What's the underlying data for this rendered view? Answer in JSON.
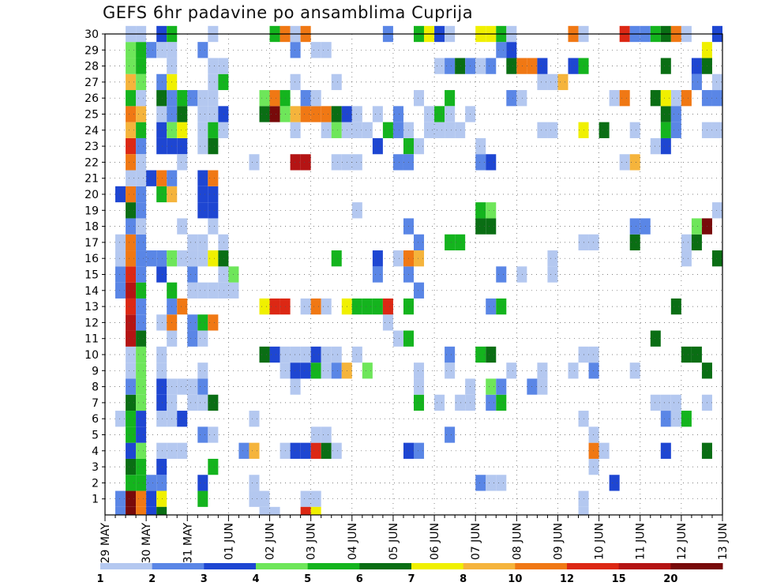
{
  "chart_data": {
    "type": "heatmap",
    "title": "GEFS 6hr padavine po ansamblima Cuprija",
    "xlabel": "",
    "ylabel": "",
    "x_tick_labels": [
      "29 MAY",
      "30 MAY",
      "31 MAY",
      "01 JUN",
      "02 JUN",
      "03 JUN",
      "04 JUN",
      "05 JUN",
      "06 JUN",
      "07 JUN",
      "08 JUN",
      "09 JUN",
      "10 JUN",
      "11 JUN",
      "12 JUN",
      "13 JUN"
    ],
    "y_tick_labels": [
      "1",
      "2",
      "3",
      "4",
      "5",
      "6",
      "7",
      "8",
      "9",
      "10",
      "11",
      "12",
      "13",
      "14",
      "15",
      "16",
      "17",
      "18",
      "19",
      "20",
      "21",
      "22",
      "23",
      "24",
      "25",
      "26",
      "27",
      "28",
      "29",
      "30"
    ],
    "xlim_steps": [
      0,
      60
    ],
    "ylim_members": [
      0,
      30
    ],
    "grid": true,
    "legend_position": "bottom",
    "legend": {
      "bins": [
        {
          "label": "1",
          "color": "#b4c8f0"
        },
        {
          "label": "2",
          "color": "#5a86e6"
        },
        {
          "label": "3",
          "color": "#1e46d2"
        },
        {
          "label": "4",
          "color": "#6ee65a"
        },
        {
          "label": "5",
          "color": "#14b41e"
        },
        {
          "label": "6",
          "color": "#0a6e14"
        },
        {
          "label": "7",
          "color": "#f0f000"
        },
        {
          "label": "8",
          "color": "#f5b43c"
        },
        {
          "label": "10",
          "color": "#f07814"
        },
        {
          "label": "12",
          "color": "#dc2814"
        },
        {
          "label": "15",
          "color": "#b41414"
        },
        {
          "label": "20",
          "color": "#780a0a"
        }
      ]
    },
    "cells_note": "each cell: [time step (6h from 29 MAY 00Z), member 1-30, color bin index 0-11]",
    "cells": [
      [
        1,
        0,
        1
      ],
      [
        2,
        0,
        11
      ],
      [
        3,
        0,
        8
      ],
      [
        5,
        0,
        2
      ],
      [
        6,
        0,
        4
      ],
      [
        2,
        1,
        4
      ],
      [
        3,
        1,
        3
      ],
      [
        4,
        1,
        1
      ],
      [
        5,
        1,
        1
      ],
      [
        9,
        1,
        2
      ],
      [
        14,
        1,
        0
      ],
      [
        16,
        1,
        0
      ],
      [
        18,
        1,
        8
      ],
      [
        19,
        1,
        6
      ],
      [
        2,
        2,
        5
      ],
      [
        3,
        2,
        3
      ],
      [
        4,
        2,
        1
      ],
      [
        4,
        2,
        1
      ],
      [
        2,
        3,
        5
      ],
      [
        3,
        3,
        4
      ],
      [
        3,
        3,
        4
      ]
    ]
  }
}
